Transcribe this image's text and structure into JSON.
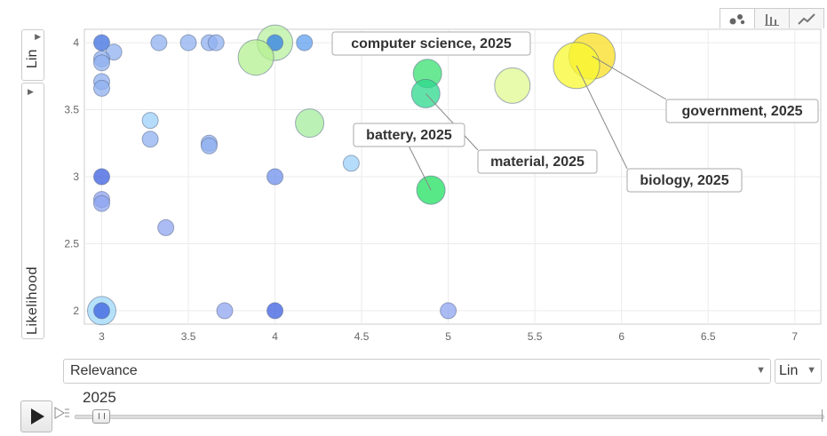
{
  "chart_data": {
    "type": "scatter",
    "xlabel": "Relevance",
    "ylabel": "Likelihood",
    "x_scale": "Lin",
    "y_scale": "Lin",
    "xlim": [
      2.9,
      7.15
    ],
    "ylim": [
      1.9,
      4.1
    ],
    "x_ticks": [
      "3",
      "3.5",
      "4",
      "4.5",
      "5",
      "5.5",
      "6",
      "6.5",
      "7"
    ],
    "y_ticks": [
      "2",
      "2.5",
      "3",
      "3.5",
      "4"
    ],
    "time_label": "2025",
    "grid": true,
    "points": [
      {
        "x": 3.0,
        "y": 4.0,
        "size": "small",
        "color": "#3b6fe0"
      },
      {
        "x": 3.07,
        "y": 3.93,
        "size": "small",
        "color": "#8fb0f0"
      },
      {
        "x": 3.0,
        "y": 3.88,
        "size": "small",
        "color": "#8fb0f0"
      },
      {
        "x": 3.0,
        "y": 3.85,
        "size": "small",
        "color": "#8fb0f0"
      },
      {
        "x": 3.0,
        "y": 3.71,
        "size": "small",
        "color": "#8fb0f0"
      },
      {
        "x": 3.0,
        "y": 3.66,
        "size": "small",
        "color": "#8fb0f0"
      },
      {
        "x": 3.33,
        "y": 4.0,
        "size": "small",
        "color": "#8fb0f0"
      },
      {
        "x": 3.5,
        "y": 4.0,
        "size": "small",
        "color": "#8fb0f0"
      },
      {
        "x": 3.62,
        "y": 4.0,
        "size": "small",
        "color": "#8fb0f0"
      },
      {
        "x": 3.66,
        "y": 4.0,
        "size": "small",
        "color": "#8fb0f0"
      },
      {
        "x": 4.0,
        "y": 4.0,
        "size": "large",
        "color": "#b8f0a0"
      },
      {
        "x": 4.0,
        "y": 4.0,
        "size": "small",
        "color": "#2f7fe8"
      },
      {
        "x": 4.17,
        "y": 4.0,
        "size": "small",
        "color": "#5fa0f0"
      },
      {
        "x": 3.89,
        "y": 3.89,
        "size": "large",
        "color": "#b4f090"
      },
      {
        "x": 3.28,
        "y": 3.42,
        "size": "small",
        "color": "#9cd0f8"
      },
      {
        "x": 3.28,
        "y": 3.28,
        "size": "small",
        "color": "#8fb0f0"
      },
      {
        "x": 3.62,
        "y": 3.25,
        "size": "small",
        "color": "#8fb0f0"
      },
      {
        "x": 3.62,
        "y": 3.23,
        "size": "small",
        "color": "#8fb0f0"
      },
      {
        "x": 4.2,
        "y": 3.4,
        "size": "medium",
        "color": "#a4ec9c"
      },
      {
        "x": 4.44,
        "y": 3.1,
        "size": "small",
        "color": "#9cd0f8"
      },
      {
        "x": 3.0,
        "y": 3.0,
        "size": "small",
        "color": "#3b5fe0"
      },
      {
        "x": 4.0,
        "y": 3.0,
        "size": "small",
        "color": "#6f90ec"
      },
      {
        "x": 3.0,
        "y": 2.83,
        "size": "small",
        "color": "#8fa4f0"
      },
      {
        "x": 3.0,
        "y": 2.8,
        "size": "small",
        "color": "#8fa4f0"
      },
      {
        "x": 3.37,
        "y": 2.62,
        "size": "small",
        "color": "#8fa4f0"
      },
      {
        "x": 3.0,
        "y": 2.0,
        "size": "medium",
        "color": "#9cd8f8"
      },
      {
        "x": 3.0,
        "y": 2.0,
        "size": "small",
        "color": "#3b5fe0"
      },
      {
        "x": 3.71,
        "y": 2.0,
        "size": "small",
        "color": "#8fa4f0"
      },
      {
        "x": 4.0,
        "y": 2.0,
        "size": "small",
        "color": "#3b5fe0"
      },
      {
        "x": 5.0,
        "y": 2.0,
        "size": "small",
        "color": "#8fa4f0"
      },
      {
        "x": 5.37,
        "y": 3.68,
        "size": "large",
        "color": "#e0f890"
      },
      {
        "x": 4.88,
        "y": 3.77,
        "size": "medium",
        "color": "#3ae070",
        "label": "computer science, 2025"
      },
      {
        "x": 4.87,
        "y": 3.62,
        "size": "medium",
        "color": "#2cd88c",
        "label": "material, 2025"
      },
      {
        "x": 4.9,
        "y": 2.9,
        "size": "medium",
        "color": "#22e060",
        "label": "battery, 2025"
      },
      {
        "x": 5.83,
        "y": 3.9,
        "size": "xlarge",
        "color": "#f8de20",
        "label": "government, 2025"
      },
      {
        "x": 5.74,
        "y": 3.83,
        "size": "xlarge",
        "color": "#f8f830",
        "label": "biology, 2025"
      }
    ],
    "labels": [
      {
        "text": "computer science, 2025"
      },
      {
        "text": "battery, 2025"
      },
      {
        "text": "material, 2025"
      },
      {
        "text": "government, 2025"
      },
      {
        "text": "biology, 2025"
      }
    ]
  }
}
